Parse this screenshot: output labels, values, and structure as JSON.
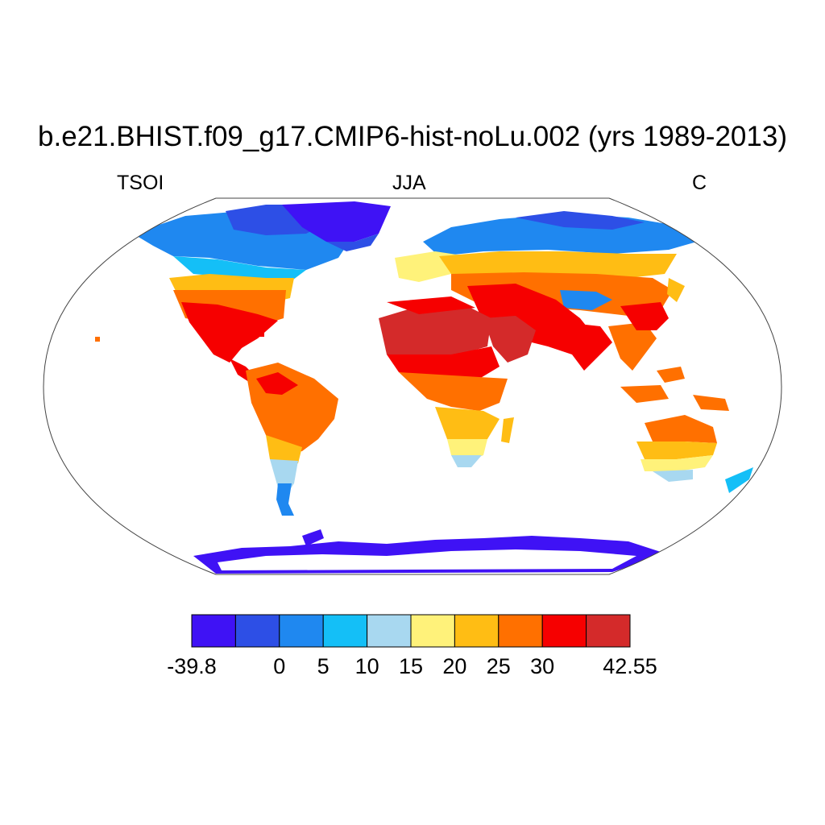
{
  "title": "b.e21.BHIST.f09_g17.CMIP6-hist-noLu.002 (yrs 1989-2013)",
  "left_string": "TSOI",
  "center_string": "JJA",
  "right_string": "C",
  "colorbar": {
    "colors": [
      "#3f12f5",
      "#2d4fe6",
      "#1f88f0",
      "#14bff7",
      "#a8d8f0",
      "#fff27a",
      "#ffbd14",
      "#ff7000",
      "#f60000",
      "#d42a2a"
    ],
    "labels": [
      "-39.8",
      "",
      "0",
      "5",
      "10",
      "15",
      "20",
      "25",
      "30",
      "",
      "42.55"
    ]
  },
  "map": {
    "projection": "robinson",
    "land_colors": {
      "arctic": "#3f12f5",
      "cold": "#2d4fe6",
      "cool": "#1f88f0",
      "cyan": "#14bff7",
      "mild": "#a8d8f0",
      "warm": "#fff27a",
      "hot25": "#ffbd14",
      "hot30": "#ff7000",
      "red": "#f60000",
      "dark": "#d42a2a"
    }
  }
}
